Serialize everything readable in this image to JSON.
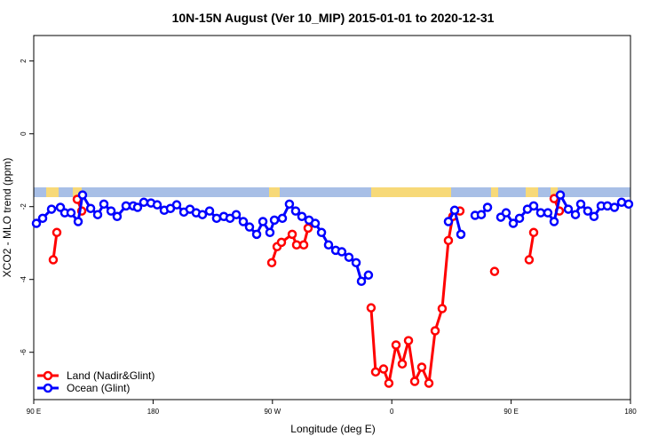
{
  "chart_data": {
    "type": "line",
    "title": "10N-15N August (Ver 10_MIP)   2015-01-01 to 2020-12-31",
    "x_label": "Longitude (deg E)",
    "y_label": "XCO2 - MLO trend (ppm)",
    "xlim": [
      90,
      540
    ],
    "ylim": [
      -7.3,
      2.7
    ],
    "xticks": [
      {
        "value": 90,
        "label": "90 E"
      },
      {
        "value": 180,
        "label": "180"
      },
      {
        "value": 270,
        "label": "90 W"
      },
      {
        "value": 360,
        "label": "0"
      },
      {
        "value": 450,
        "label": "90 E"
      },
      {
        "value": 540,
        "label": "180"
      }
    ],
    "yticks": [
      -6,
      -4,
      -2,
      0,
      2
    ],
    "legend": "bottom-left",
    "series": [
      {
        "name": "Land (Nadir&Glint)",
        "color": "#ff0000",
        "x": [
          104.7,
          107.4,
          null,
          122.8,
          126.2,
          null,
          269.5,
          273.5,
          276.8,
          284.9,
          288.2,
          293.6,
          296.9,
          null,
          344.4,
          347.8,
          353.8,
          357.8,
          363.2,
          367.9,
          372.6,
          377.3,
          382.6,
          388.0,
          392.7,
          398.0,
          402.7,
          406.0,
          411.4,
          null,
          437.5,
          null,
          463.6,
          467.0,
          null,
          482.4,
          486.4
        ],
        "values": [
          -3.46,
          -2.71,
          null,
          -1.8,
          -2.12,
          null,
          -3.54,
          -3.1,
          -2.98,
          -2.76,
          -3.05,
          -3.05,
          -2.59,
          null,
          -4.78,
          -6.54,
          -6.46,
          -6.85,
          -5.8,
          -6.32,
          -5.68,
          -6.8,
          -6.41,
          -6.85,
          -5.41,
          -4.8,
          -2.93,
          -2.27,
          -2.12,
          null,
          -3.78,
          null,
          -3.46,
          -2.71,
          null,
          -1.78,
          -2.12
        ]
      },
      {
        "name": "Ocean (Glint)",
        "color": "#0000ff",
        "x": [
          92.0,
          96.7,
          103.4,
          110.1,
          113.4,
          118.1,
          123.5,
          126.8,
          132.9,
          138.2,
          142.9,
          148.3,
          152.9,
          159.6,
          165.0,
          168.3,
          173.0,
          178.4,
          183.1,
          188.4,
          193.1,
          197.8,
          203.2,
          207.8,
          212.5,
          217.2,
          222.6,
          227.9,
          233.3,
          238.0,
          242.7,
          248.0,
          252.7,
          258.1,
          262.8,
          268.1,
          271.5,
          277.5,
          282.8,
          287.5,
          292.2,
          297.6,
          302.3,
          307.0,
          312.3,
          317.7,
          322.3,
          327.7,
          333.1,
          337.1,
          342.4,
          null,
          402.7,
          407.4,
          412.1,
          null,
          422.8,
          427.5,
          432.2,
          null,
          442.2,
          446.2,
          451.6,
          456.3,
          462.3,
          467.0,
          472.3,
          477.7,
          482.4,
          487.1,
          493.1,
          498.5,
          502.5,
          507.8,
          512.5,
          517.9,
          522.6,
          527.9,
          533.3,
          538.6
        ],
        "values": [
          -2.46,
          -2.32,
          -2.07,
          -2.02,
          -2.17,
          -2.17,
          -2.41,
          -1.68,
          -2.05,
          -2.22,
          -1.93,
          -2.12,
          -2.27,
          -1.98,
          -1.98,
          -2.02,
          -1.88,
          -1.9,
          -1.95,
          -2.1,
          -2.05,
          -1.95,
          -2.15,
          -2.07,
          -2.17,
          -2.22,
          -2.12,
          -2.32,
          -2.27,
          -2.32,
          -2.22,
          -2.41,
          -2.56,
          -2.76,
          -2.41,
          -2.71,
          -2.37,
          -2.32,
          -1.93,
          -2.12,
          -2.27,
          -2.37,
          -2.46,
          -2.71,
          -3.05,
          -3.2,
          -3.24,
          -3.39,
          -3.54,
          -4.05,
          -3.88,
          null,
          -2.41,
          -2.1,
          -2.76,
          null,
          -2.24,
          -2.22,
          -2.02,
          null,
          -2.29,
          -2.17,
          -2.46,
          -2.32,
          -2.07,
          -1.98,
          -2.17,
          -2.17,
          -2.41,
          -1.68,
          -2.07,
          -2.22,
          -1.93,
          -2.12,
          -2.27,
          -1.98,
          -1.98,
          -2.02,
          -1.88,
          -1.93
        ]
      }
    ]
  }
}
